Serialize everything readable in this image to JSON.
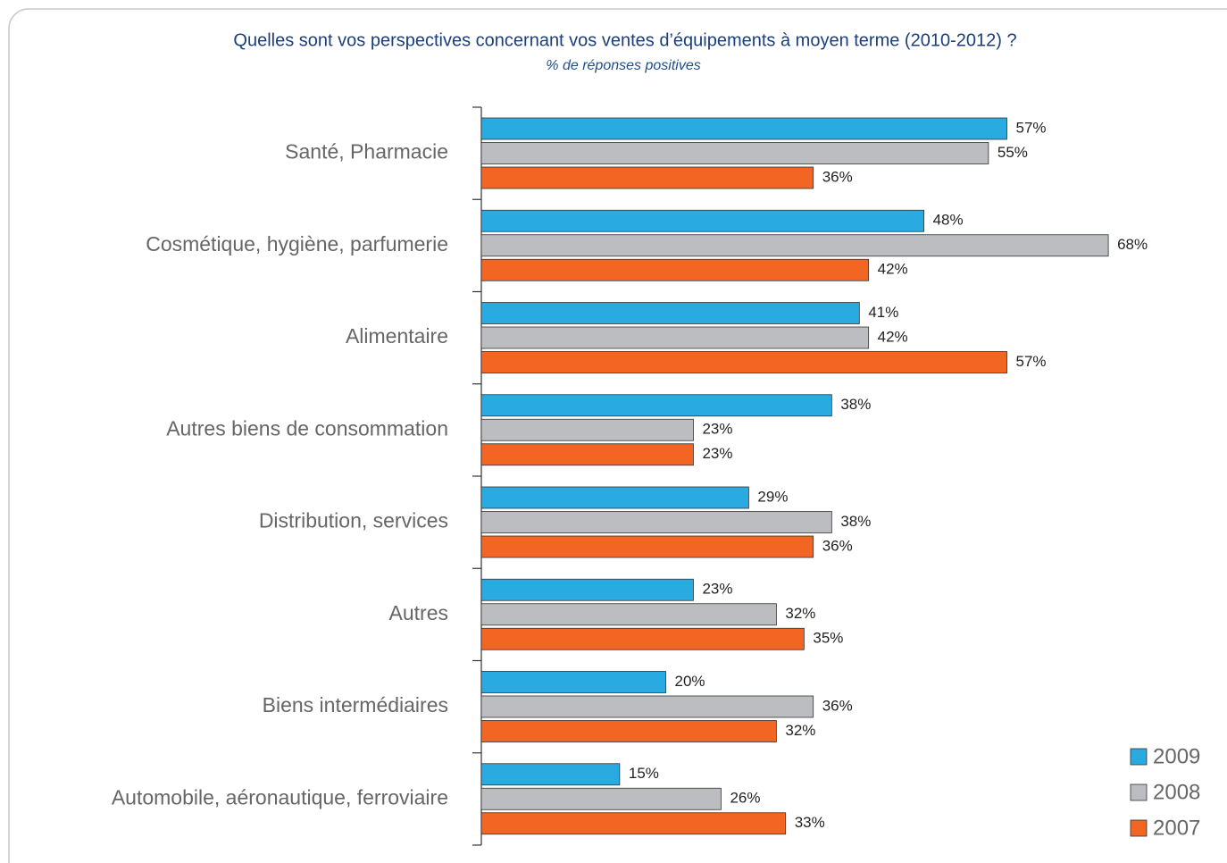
{
  "chart_data": {
    "type": "bar",
    "orientation": "horizontal",
    "title": "Quelles sont vos perspectives concernant vos ventes d’équipements à moyen terme (2010-2012) ?",
    "subtitle": "% de réponses positives",
    "categories": [
      "Santé, Pharmacie",
      "Cosmétique, hygiène, parfumerie",
      "Alimentaire",
      "Autres biens de consommation",
      "Distribution, services",
      "Autres",
      "Biens intermédiaires",
      "Automobile, aéronautique, ferroviaire"
    ],
    "xlim": [
      0,
      80
    ],
    "series": [
      {
        "name": "2009",
        "color": "#29abe2",
        "values": [
          57,
          48,
          41,
          38,
          29,
          23,
          20,
          15
        ],
        "value_labels": [
          "57%",
          "48%",
          "41%",
          "38%",
          "29%",
          "23%",
          "20%",
          "15%"
        ]
      },
      {
        "name": "2008",
        "color": "#bcbdc0",
        "values": [
          55,
          68,
          42,
          23,
          38,
          32,
          36,
          26
        ],
        "value_labels": [
          "55%",
          "68%",
          "42%",
          "23%",
          "38%",
          "32%",
          "36%",
          "26%"
        ]
      },
      {
        "name": "2007",
        "color": "#f26522",
        "values": [
          36,
          42,
          57,
          23,
          36,
          35,
          32,
          33
        ],
        "value_labels": [
          "36%",
          "42%",
          "57%",
          "23%",
          "36%",
          "35%",
          "32%",
          "33%"
        ]
      }
    ],
    "legend": "bottom-right"
  }
}
